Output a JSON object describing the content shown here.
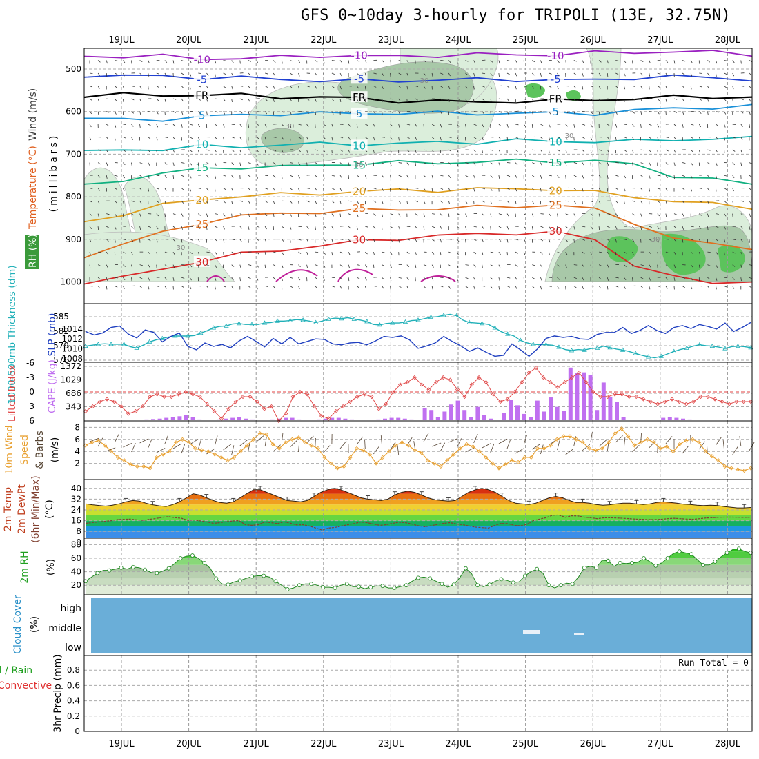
{
  "title": "GFS 0~10day 3-hourly for TRIPOLI (13E, 32.75N)",
  "dates": [
    "19JUL",
    "20JUL",
    "21JUL",
    "22JUL",
    "23JUL",
    "24JUL",
    "25JUL",
    "26JUL",
    "27JUL",
    "28JUL"
  ],
  "chart_data": [
    {
      "id": "upper",
      "type": "contour",
      "ylabel_parts": [
        {
          "text": "RH (%)",
          "color": "#3a9a3a"
        },
        {
          "text": "Temperature (°C)",
          "color": "#e06020"
        },
        {
          "text": "Wind (m/s)",
          "color": "#404040"
        }
      ],
      "ylabel_unit": "(millibars)",
      "yticks": [
        500,
        600,
        700,
        800,
        900,
        1000
      ],
      "ylim": [
        1000,
        450
      ],
      "isotherms": [
        {
          "label": "-10",
          "color": "#9a20c0",
          "p": [
            470,
            470,
            470,
            475,
            475,
            472,
            468,
            470,
            470,
            468,
            466,
            466,
            466,
            462,
            460,
            460,
            460,
            465
          ]
        },
        {
          "label": "-5",
          "color": "#2040d0",
          "p": [
            515,
            515,
            518,
            520,
            520,
            525,
            526,
            528,
            528,
            525,
            525,
            525,
            526,
            526,
            520,
            518,
            520,
            525
          ]
        },
        {
          "label": "FR",
          "color": "#000000",
          "p": [
            562,
            560,
            562,
            560,
            562,
            566,
            566,
            570,
            575,
            576,
            578,
            576,
            575,
            572,
            570,
            566,
            565,
            567
          ]
        },
        {
          "label": "5",
          "color": "#1a90d8",
          "p": [
            615,
            620,
            618,
            612,
            608,
            605,
            605,
            604,
            604,
            604,
            604,
            604,
            604,
            604,
            598,
            592,
            590,
            588
          ]
        },
        {
          "label": "10",
          "color": "#10b0b0",
          "p": [
            695,
            690,
            688,
            682,
            682,
            678,
            676,
            676,
            676,
            672,
            672,
            668,
            670,
            670,
            670,
            665,
            665,
            662
          ]
        },
        {
          "label": "15",
          "color": "#10b080",
          "p": [
            775,
            760,
            745,
            735,
            730,
            730,
            726,
            722,
            720,
            720,
            718,
            716,
            716,
            716,
            725,
            750,
            760,
            770
          ]
        },
        {
          "label": "20",
          "color": "#e0a020",
          "p": [
            860,
            840,
            820,
            806,
            798,
            795,
            792,
            788,
            785,
            785,
            782,
            782,
            782,
            790,
            800,
            810,
            818,
            825
          ]
        },
        {
          "label": "25",
          "color": "#e07020",
          "p": [
            940,
            910,
            885,
            860,
            845,
            840,
            835,
            832,
            830,
            828,
            825,
            822,
            820,
            830,
            860,
            900,
            910,
            920
          ]
        },
        {
          "label": "30",
          "color": "#d82828",
          "p": [
            1000,
            990,
            970,
            950,
            935,
            925,
            915,
            905,
            898,
            892,
            888,
            885,
            885,
            900,
            960,
            990,
            1000,
            1000
          ]
        }
      ],
      "rh_contour_labels": [
        "30",
        "30",
        "30",
        "30",
        "30",
        "30"
      ]
    },
    {
      "id": "slp_thickness",
      "type": "line",
      "ylabel_left": "1000-500mb Thickness (dm)",
      "ylabel_right": "SLP (mb)",
      "left_ticks": [
        576,
        579,
        582,
        585
      ],
      "right_ticks": [
        1008,
        1010,
        1012,
        1014
      ],
      "series": [
        {
          "name": "SLP",
          "color": "#2040c0",
          "axis": "right",
          "values": [
            1013.5,
            1012.8,
            1013.2,
            1014.3,
            1014.6,
            1013,
            1012.2,
            1013.8,
            1013.3,
            1011.4,
            1012.5,
            1013.2,
            1010.5,
            1009.8,
            1011.2,
            1010.5,
            1010.9,
            1010.2,
            1011.6,
            1012.5,
            1011.5,
            1010.4,
            1012.1,
            1011,
            1012.3,
            1011,
            1011.5,
            1012,
            1011.9,
            1011,
            1010.8,
            1011.2,
            1011.3,
            1010.8,
            1011.6,
            1012.5,
            1012.3,
            1012.6,
            1011.8,
            1010.1,
            1010.6,
            1011.2,
            1012.5,
            1011.5,
            1010.6,
            1009.5,
            1010.2,
            1009.3,
            1008.5,
            1008.7,
            1011,
            1009.8,
            1008.5,
            1010,
            1012.1,
            1012.6,
            1012.3,
            1012.5,
            1012,
            1011.9,
            1012.9,
            1013.3,
            1013.3,
            1014.3,
            1013.1,
            1013.7,
            1014.7,
            1013.7,
            1013.1,
            1014.3,
            1014.7,
            1014.1,
            1014.9,
            1014.5,
            1014,
            1015.2,
            1013.5,
            1014.3,
            1015.3
          ]
        },
        {
          "name": "Thickness",
          "color": "#20b0b8",
          "axis": "left",
          "values": [
            578.9,
            579.1,
            579.3,
            579.4,
            579.3,
            579.3,
            579.3,
            578.8,
            578.5,
            579.1,
            579.8,
            580.2,
            580.5,
            580.8,
            581,
            581,
            581,
            581.1,
            581.6,
            582.1,
            582.7,
            583,
            583.1,
            583.5,
            583.6,
            583.4,
            583.4,
            583.4,
            583.7,
            583.8,
            584.1,
            584.1,
            584.2,
            584.4,
            584.3,
            584.1,
            583.8,
            584.1,
            584.5,
            584.7,
            584.6,
            584.8,
            584.5,
            584.3,
            584,
            583.4,
            583.3,
            583.6,
            583.7,
            583.7,
            583.9,
            584.2,
            584.3,
            584.6,
            584.9,
            585,
            585.3,
            585.5,
            585.2,
            584.3,
            583.8,
            583.7,
            583.6,
            583.4,
            582.7,
            581.9,
            581.4,
            581,
            580.1,
            579.6,
            579.3,
            579.2,
            579.2,
            579.1,
            578.7,
            578.2,
            578,
            578.2,
            578.1,
            578.4,
            578.5,
            578.9,
            578.6,
            578.3,
            578.1,
            577.8,
            577.4,
            577,
            576.7,
            576.5,
            576.8,
            577.3,
            577.8,
            578.2,
            578.5,
            578.9,
            579.2,
            579,
            578.9,
            578.7,
            578.4,
            578.8,
            578.9,
            578.8,
            578.6
          ]
        }
      ]
    },
    {
      "id": "li_cape",
      "type": "bar+line",
      "ylabel_left": "Lifted Index",
      "ylabel_right": "CAPE (J/kg)",
      "left_ticks": [
        "-6",
        "-3",
        "0",
        "3",
        "6"
      ],
      "right_ticks": [
        "1372",
        "1029",
        "686",
        "343"
      ],
      "lifted_index": [
        4,
        3,
        2,
        1.5,
        2,
        3,
        4.5,
        4,
        3,
        1,
        0.5,
        1,
        1,
        0.5,
        0,
        0.5,
        1,
        2.5,
        4,
        5.5,
        3.5,
        2,
        1,
        1,
        2,
        3.5,
        3,
        6,
        4.5,
        1,
        0,
        0.5,
        3,
        5,
        5.5,
        4,
        3,
        2,
        1,
        0.5,
        1,
        3.5,
        2.5,
        0,
        -1.5,
        -2,
        -3,
        -1.5,
        -0.5,
        -2,
        -3,
        -2.5,
        -0.5,
        1,
        -1.5,
        -3,
        -2,
        0.5,
        2,
        1.5,
        0,
        -2,
        -4,
        -5,
        -3,
        -2,
        -1,
        -2,
        -3,
        -4,
        -2,
        0,
        1,
        1,
        0.5,
        0.5,
        1,
        1,
        1.5,
        2,
        2.5,
        2,
        1.5,
        2,
        2.5,
        2,
        1,
        1,
        1.5,
        2,
        2.5,
        2,
        2,
        2
      ],
      "cape": [
        0,
        0,
        0,
        0,
        0,
        0,
        0,
        0,
        10,
        20,
        30,
        40,
        60,
        80,
        100,
        140,
        80,
        20,
        0,
        0,
        20,
        40,
        60,
        80,
        40,
        20,
        0,
        0,
        20,
        40,
        60,
        60,
        20,
        0,
        0,
        20,
        40,
        60,
        60,
        40,
        20,
        0,
        0,
        10,
        20,
        40,
        60,
        60,
        40,
        20,
        10,
        300,
        260,
        80,
        220,
        400,
        500,
        260,
        80,
        340,
        140,
        40,
        0,
        180,
        520,
        380,
        160,
        80,
        500,
        220,
        580,
        340,
        240,
        1340,
        1200,
        1220,
        1150,
        260,
        960,
        600,
        460,
        80,
        0,
        0,
        0,
        0,
        0,
        60,
        80,
        60,
        40,
        20,
        0,
        0,
        0,
        0,
        0,
        0,
        0,
        0,
        0
      ]
    },
    {
      "id": "wind10m",
      "type": "line",
      "ylabel": "10m Wind Speed & Barbs (m/s)",
      "yticks": [
        2,
        4,
        6,
        8
      ],
      "values": [
        5,
        5.5,
        5.8,
        5,
        4,
        3,
        2.5,
        1.8,
        1.5,
        1.5,
        1.2,
        3,
        3.5,
        4,
        5.5,
        6,
        5.5,
        4.5,
        4.2,
        4,
        3.5,
        3,
        2.5,
        3,
        4,
        5,
        6,
        7,
        6.8,
        5.2,
        4.5,
        5.5,
        6,
        6.3,
        5.5,
        5,
        4.5,
        3,
        2,
        1.2,
        1.5,
        3,
        4.5,
        4.2,
        3.5,
        2,
        3,
        4,
        5,
        5.5,
        5,
        4.2,
        3.8,
        2.5,
        2,
        1.5,
        2.5,
        3.5,
        4.5,
        5.2,
        4.8,
        4,
        3,
        2,
        1.2,
        1.8,
        2.5,
        2.2,
        3,
        3,
        4.5,
        4.5,
        5,
        6,
        6.5,
        6.5,
        6,
        5.5,
        4.5,
        4.2,
        4.5,
        5.5,
        7,
        7.8,
        6.5,
        5,
        5.5,
        6,
        5.5,
        4.5,
        4.8,
        4,
        5.2,
        5.8,
        6,
        5.5,
        4,
        3.2,
        2.5,
        1.5,
        1.2,
        1,
        0.8,
        1.2
      ]
    },
    {
      "id": "temp2m",
      "type": "area",
      "ylabel_parts": [
        "2m Temp",
        "2m DewPt",
        "(6hr Min/Max)",
        "(°C)"
      ],
      "yticks": [
        8,
        16,
        24,
        32,
        40
      ],
      "temp": [
        28.5,
        27.8,
        27.3,
        26.8,
        27.5,
        28.5,
        30,
        31,
        30.5,
        29,
        27.8,
        27,
        26.5,
        28,
        30,
        33,
        36,
        35,
        33,
        31,
        29.5,
        29,
        30,
        33,
        36,
        39,
        39,
        37,
        35,
        33,
        31,
        30.5,
        30,
        31,
        34,
        37,
        39,
        40,
        39,
        37,
        35,
        33,
        32,
        31.5,
        31,
        32,
        35,
        37,
        38,
        37,
        35,
        33,
        31.5,
        31,
        30.5,
        31,
        34,
        37,
        39,
        40,
        39,
        37,
        34,
        31,
        29,
        28.5,
        28,
        29,
        31,
        33,
        34,
        33,
        31,
        29.5,
        29.5,
        29,
        28,
        27.5,
        27.8,
        28.5,
        29,
        29,
        28.5,
        28,
        28.5,
        29.5,
        30,
        29.5,
        29,
        28.2,
        28,
        27.5,
        27.2,
        27.5,
        27.3,
        26.5,
        26,
        25.5,
        25.5,
        25.8
      ],
      "dewpt": [
        14,
        14.5,
        15,
        15.5,
        16,
        16.8,
        17,
        17.2,
        16.6,
        16.2,
        17,
        17.6,
        18.5,
        19,
        18.2,
        17.8,
        16.2,
        16.5,
        15.8,
        15,
        14,
        14.5,
        15.2,
        15.8,
        16,
        13,
        12.5,
        13,
        15,
        14.5,
        13.8,
        15.2,
        14.2,
        12.8,
        13,
        12,
        10.5,
        9,
        10.5,
        11,
        12,
        13,
        13.8,
        15,
        14.5,
        13.5,
        12.5,
        13,
        14,
        14.8,
        14.5,
        13.5,
        12.2,
        11.5,
        12.2,
        13.2,
        14,
        14.5,
        13.5,
        13,
        12,
        11.2,
        10.8,
        10.5,
        12.5,
        14,
        13.8,
        12.5,
        12.2,
        13.2,
        16,
        17.2,
        18.2,
        20,
        20.2,
        18.5,
        19.6,
        19.5,
        18.6,
        18.2,
        17.5,
        18.1,
        18.2,
        18,
        17.8,
        17.5,
        17.2,
        17,
        16.8,
        16.8,
        17,
        17.5,
        17.8,
        17.5,
        17.2,
        17,
        17.5,
        18,
        18.2,
        18.5,
        18.6,
        18.6,
        18.5,
        18.4,
        18.5
      ]
    },
    {
      "id": "rh2m",
      "type": "area",
      "ylabel": "2m RH (%)",
      "yticks": [
        20,
        40,
        60,
        80
      ],
      "values": [
        26,
        32,
        38,
        42,
        42,
        44,
        46,
        44,
        47,
        46,
        43,
        39,
        38,
        41,
        45,
        52,
        60,
        63,
        64,
        60,
        53,
        45,
        30,
        22,
        21,
        25,
        27,
        30,
        33,
        34,
        34,
        32,
        26,
        20,
        14,
        16,
        20,
        22,
        22,
        20,
        17,
        17,
        16,
        20,
        22,
        18,
        18,
        15,
        17,
        19,
        19,
        16,
        16,
        18,
        20,
        26,
        31,
        32,
        30,
        26,
        22,
        17,
        21,
        31,
        45,
        37,
        20,
        18,
        21,
        26,
        29,
        27,
        24,
        25,
        34,
        40,
        44,
        38,
        20,
        16,
        20,
        23,
        22,
        32,
        46,
        48,
        46,
        57,
        56,
        48,
        53,
        52,
        53,
        54,
        60,
        55,
        49,
        53,
        60,
        67,
        70,
        68,
        66,
        58,
        50,
        50,
        55,
        62,
        68,
        73,
        74,
        70,
        68
      ]
    },
    {
      "id": "cloud",
      "type": "heatmap",
      "ylabel": "Cloud Cover (%)",
      "rows": [
        "high",
        "middle",
        "low"
      ]
    },
    {
      "id": "precip",
      "type": "bar",
      "ylabel_parts": [
        "Total / Rain",
        "Convective",
        "3hr Precip (mm)"
      ],
      "yticks": [
        "0",
        "0.2",
        "0.4",
        "0.6",
        "0.8"
      ],
      "run_total": "Run Total = 0",
      "values": []
    }
  ]
}
